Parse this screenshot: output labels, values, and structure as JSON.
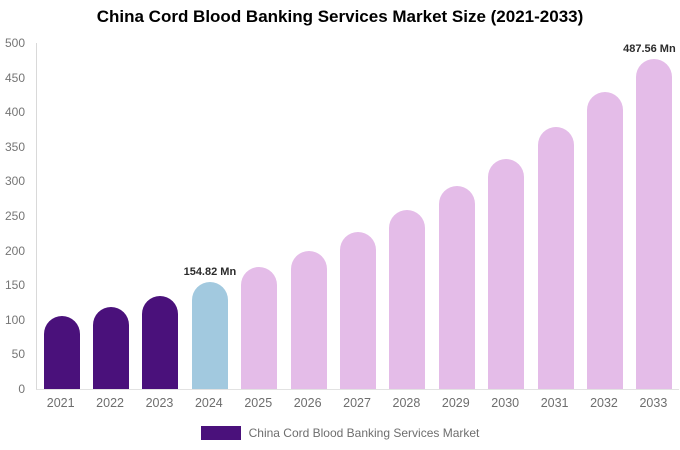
{
  "chart": {
    "legend_label": "China Cord Blood Banking Services Market"
  },
  "chart_data": {
    "type": "bar",
    "title": "China Cord Blood Banking Services Market Size (2021-2033)",
    "xlabel": "",
    "ylabel": "",
    "unit": "Mn",
    "categories": [
      "2021",
      "2022",
      "2023",
      "2024",
      "2025",
      "2026",
      "2027",
      "2028",
      "2029",
      "2030",
      "2031",
      "2032",
      "2033"
    ],
    "values": [
      105,
      119,
      135,
      154.82,
      176,
      200,
      227,
      258,
      293,
      333,
      378,
      429,
      487.56
    ],
    "roles": [
      "historical",
      "historical",
      "historical",
      "base_year",
      "forecast",
      "forecast",
      "forecast",
      "forecast",
      "forecast",
      "forecast",
      "forecast",
      "forecast",
      "forecast"
    ],
    "colors": {
      "historical": "#4A117B",
      "base_year": "#A2C9DF",
      "forecast": "#E4BCE8"
    },
    "ylim": [
      0,
      500
    ],
    "yticks": [
      0,
      50,
      100,
      150,
      200,
      250,
      300,
      350,
      400,
      450,
      500
    ],
    "grid": false,
    "legend_position": "bottom",
    "annotations": [
      {
        "category": "2024",
        "text": "154.82 Mn"
      },
      {
        "category": "2033",
        "text": "487.56 Mn"
      }
    ]
  }
}
